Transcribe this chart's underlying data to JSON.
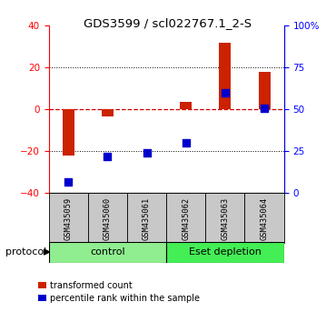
{
  "title": "GDS3599 / scl022767.1_2-S",
  "samples": [
    "GSM435059",
    "GSM435060",
    "GSM435061",
    "GSM435062",
    "GSM435063",
    "GSM435064"
  ],
  "red_bars": [
    -22.0,
    -3.5,
    0.0,
    3.5,
    32.0,
    18.0
  ],
  "blue_dots_pct": [
    7,
    22,
    24,
    30,
    60,
    51
  ],
  "ylim": [
    -40,
    40
  ],
  "yticks_left": [
    -40,
    -20,
    0,
    20,
    40
  ],
  "yticks_right_pct": [
    0,
    25,
    50,
    75,
    100
  ],
  "bar_color": "#CC2200",
  "dot_color": "#0000CC",
  "zero_line_color": "#CC0000",
  "bg_color": "#FFFFFF",
  "protocol_label": "protocol",
  "legend_red": "transformed count",
  "legend_blue": "percentile rank within the sample",
  "control_color": "#90EE90",
  "eset_color": "#44EE55",
  "sample_bg": "#C8C8C8"
}
